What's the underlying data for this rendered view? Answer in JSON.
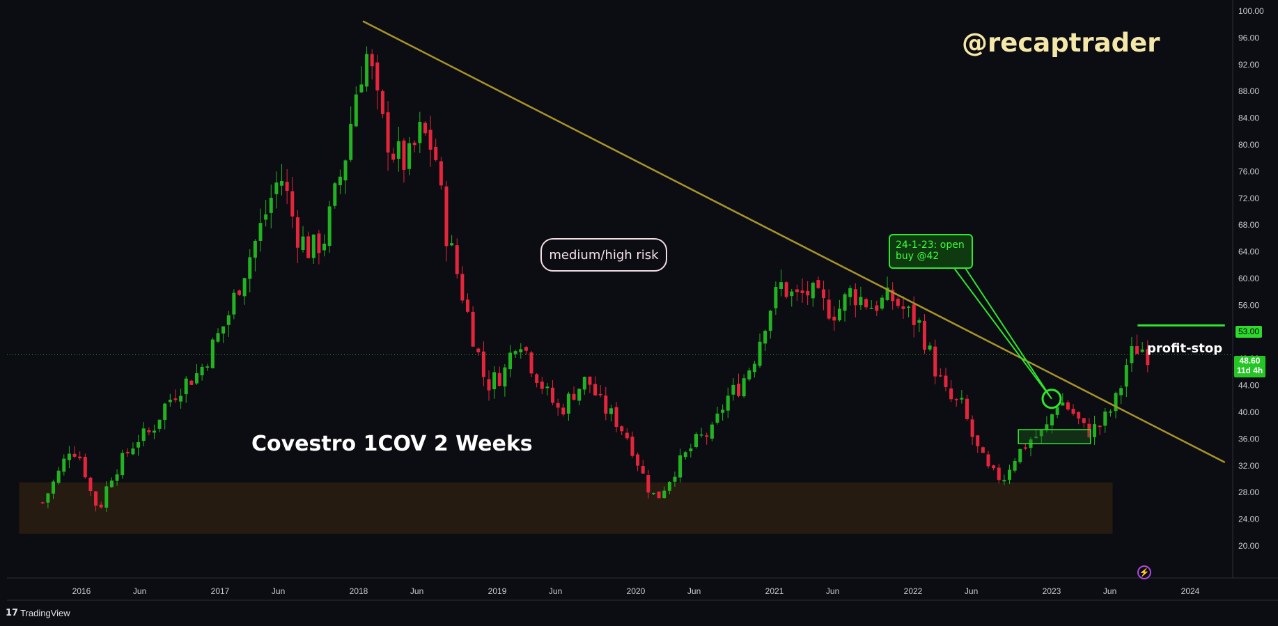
{
  "watermark": "@recaptrader",
  "chart_title": "Covestro 1COV 2 Weeks",
  "annotations": {
    "risk": "medium/high risk",
    "trade_note": "24-1-23: open\nbuy @42",
    "profit_stop": "profit-stop"
  },
  "price_tags": {
    "target": "53.00",
    "last_price": "48.60",
    "countdown": "11d 4h"
  },
  "branding": {
    "logo": "TradingView",
    "logo_mark": "17"
  },
  "colors": {
    "up": "#22b322",
    "down": "#e5253c",
    "trendline": "#a8942a",
    "support_zone": "#2a1e10",
    "buy_zone": "#1f6e1f",
    "highlight": "#2ee62e",
    "target_line": "#2ee62e",
    "background": "#0c0d12"
  },
  "chart_data": {
    "type": "candlestick",
    "title": "Covestro 1COV 2 Weeks",
    "ylim": [
      18.8,
      100.8
    ],
    "y_ticks": [
      100,
      96,
      92,
      88,
      84,
      80,
      76,
      72,
      68,
      64,
      60,
      56,
      52,
      48,
      44,
      40,
      36,
      32,
      28,
      24,
      20
    ],
    "x_ticks": [
      {
        "label": "2016",
        "t": 2016.0
      },
      {
        "label": "Jun",
        "t": 2016.42
      },
      {
        "label": "2017",
        "t": 2017.0
      },
      {
        "label": "Jun",
        "t": 2017.42
      },
      {
        "label": "2018",
        "t": 2018.0
      },
      {
        "label": "Jun",
        "t": 2018.42
      },
      {
        "label": "2019",
        "t": 2019.0
      },
      {
        "label": "Jun",
        "t": 2019.42
      },
      {
        "label": "2020",
        "t": 2020.0
      },
      {
        "label": "Jun",
        "t": 2020.42
      },
      {
        "label": "2021",
        "t": 2021.0
      },
      {
        "label": "Jun",
        "t": 2021.42
      },
      {
        "label": "2022",
        "t": 2022.0
      },
      {
        "label": "Jun",
        "t": 2022.42
      },
      {
        "label": "2023",
        "t": 2023.0
      },
      {
        "label": "Jun",
        "t": 2023.42
      },
      {
        "label": "2024",
        "t": 2024.0
      }
    ],
    "xlim": [
      2015.45,
      2024.25
    ],
    "close_path": [
      [
        2015.72,
        26.5
      ],
      [
        2015.85,
        31.5
      ],
      [
        2015.92,
        35
      ],
      [
        2016.0,
        33
      ],
      [
        2016.08,
        27
      ],
      [
        2016.13,
        25.5
      ],
      [
        2016.2,
        30
      ],
      [
        2016.3,
        33
      ],
      [
        2016.4,
        36
      ],
      [
        2016.5,
        37
      ],
      [
        2016.6,
        41
      ],
      [
        2016.72,
        44
      ],
      [
        2016.85,
        46
      ],
      [
        2016.95,
        50
      ],
      [
        2017.05,
        54
      ],
      [
        2017.15,
        60
      ],
      [
        2017.3,
        68
      ],
      [
        2017.4,
        74
      ],
      [
        2017.45,
        75
      ],
      [
        2017.55,
        67
      ],
      [
        2017.65,
        64
      ],
      [
        2017.75,
        66
      ],
      [
        2017.8,
        70
      ],
      [
        2017.9,
        78
      ],
      [
        2017.98,
        88
      ],
      [
        2018.05,
        94
      ],
      [
        2018.1,
        90
      ],
      [
        2018.15,
        84
      ],
      [
        2018.25,
        79
      ],
      [
        2018.35,
        77
      ],
      [
        2018.45,
        82
      ],
      [
        2018.55,
        79
      ],
      [
        2018.62,
        68
      ],
      [
        2018.72,
        60
      ],
      [
        2018.82,
        52
      ],
      [
        2018.92,
        44
      ],
      [
        2019.05,
        46
      ],
      [
        2019.15,
        52
      ],
      [
        2019.25,
        47
      ],
      [
        2019.35,
        43
      ],
      [
        2019.45,
        40
      ],
      [
        2019.55,
        43
      ],
      [
        2019.65,
        45
      ],
      [
        2019.75,
        41
      ],
      [
        2019.85,
        39
      ],
      [
        2019.95,
        36
      ],
      [
        2020.08,
        29
      ],
      [
        2020.15,
        27
      ],
      [
        2020.3,
        32
      ],
      [
        2020.45,
        36
      ],
      [
        2020.55,
        37
      ],
      [
        2020.65,
        42
      ],
      [
        2020.75,
        44
      ],
      [
        2020.85,
        48
      ],
      [
        2020.95,
        55
      ],
      [
        2021.05,
        59
      ],
      [
        2021.15,
        57
      ],
      [
        2021.25,
        58
      ],
      [
        2021.35,
        56
      ],
      [
        2021.45,
        55
      ],
      [
        2021.55,
        58
      ],
      [
        2021.7,
        56
      ],
      [
        2021.85,
        57
      ],
      [
        2021.95,
        55
      ],
      [
        2022.05,
        53
      ],
      [
        2022.15,
        47
      ],
      [
        2022.25,
        42
      ],
      [
        2022.35,
        41
      ],
      [
        2022.45,
        35
      ],
      [
        2022.55,
        31
      ],
      [
        2022.65,
        30
      ],
      [
        2022.72,
        33
      ],
      [
        2022.85,
        36
      ],
      [
        2022.95,
        37
      ],
      [
        2023.05,
        42
      ],
      [
        2023.15,
        40
      ],
      [
        2023.25,
        37
      ],
      [
        2023.35,
        38
      ],
      [
        2023.45,
        41
      ],
      [
        2023.5,
        44
      ],
      [
        2023.55,
        48
      ],
      [
        2023.63,
        50
      ],
      [
        2023.7,
        48.6
      ]
    ],
    "shapes": {
      "trendline": {
        "from": [
          2018.03,
          98.5
        ],
        "to": [
          2024.25,
          32.5
        ]
      },
      "support_zone": {
        "t0": 2015.55,
        "t1": 2023.44,
        "y0": 21.8,
        "y1": 29.5
      },
      "buy_zone": {
        "t0": 2022.76,
        "t1": 2023.28,
        "y0": 35.3,
        "y1": 37.4
      },
      "target_line": {
        "t0": 2023.62,
        "t1": 2024.25,
        "y": 53.0
      },
      "last_price_line": {
        "y": 48.6
      },
      "entry_circle": {
        "t": 2023.0,
        "y": 42
      },
      "note_pointer": {
        "from_t": 2022.35,
        "to_t": 2023.0,
        "to_y": 42
      }
    }
  }
}
